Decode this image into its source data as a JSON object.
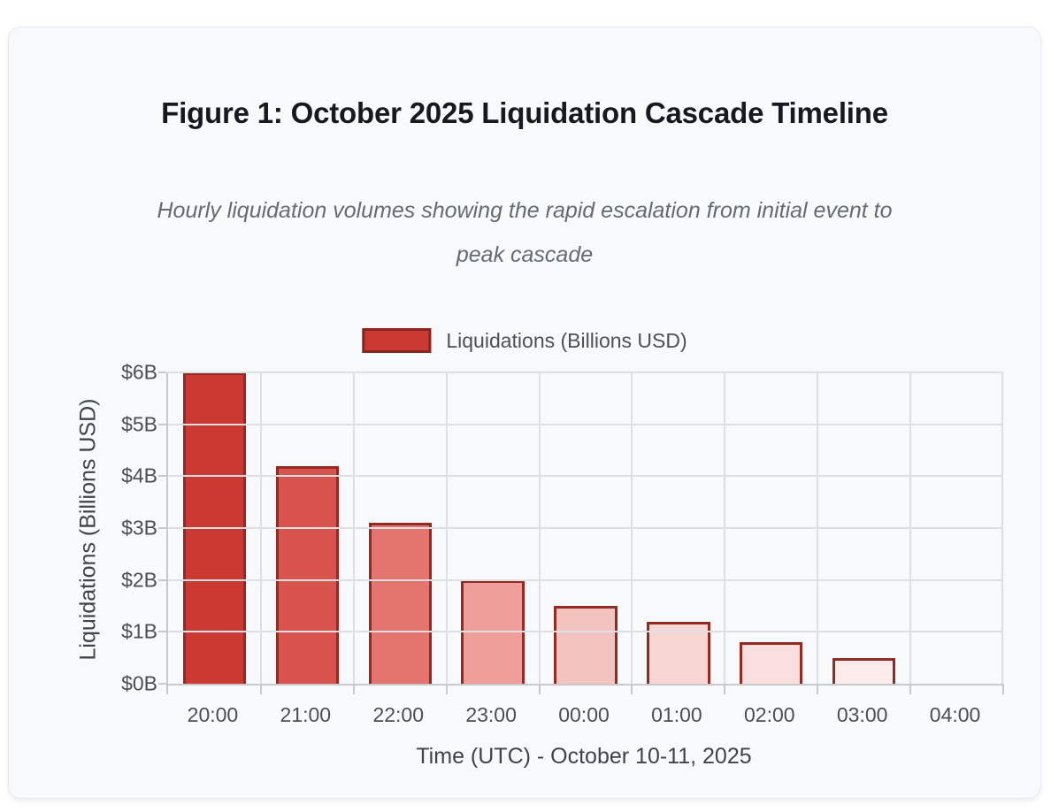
{
  "figure": {
    "title": "Figure 1: October 2025 Liquidation Cascade Timeline",
    "subtitle": "Hourly liquidation volumes showing the rapid escalation from initial event to\npeak cascade"
  },
  "legend": {
    "label": "Liquidations (Billions USD)",
    "swatch_fill": "#ca3a32",
    "swatch_border": "#8a241e"
  },
  "chart_data": {
    "type": "bar",
    "title": "Figure 1: October 2025 Liquidation Cascade Timeline",
    "categories": [
      "20:00",
      "21:00",
      "22:00",
      "23:00",
      "00:00",
      "01:00",
      "02:00",
      "03:00",
      "04:00"
    ],
    "values": [
      6.0,
      4.2,
      3.1,
      2.0,
      1.5,
      1.2,
      0.8,
      0.5,
      0
    ],
    "series_name": "Liquidations (Billions USD)",
    "xlabel": "Time (UTC) - October 10-11, 2025",
    "ylabel": "Liquidations (Billions USD)",
    "y_tick_labels": [
      "$6B",
      "$5B",
      "$4B",
      "$3B",
      "$2B",
      "$1B",
      "$0B"
    ],
    "ylim": [
      0,
      6
    ],
    "grid": true,
    "legend_position": "top-center",
    "bar_fill_colors": [
      "#ca3a32",
      "#d7534b",
      "#e4746e",
      "#ef9e9a",
      "#f3c3c0",
      "#f7d6d4",
      "#f9e0de",
      "#fbeceb",
      "#fbeceb"
    ],
    "bar_border_color": "#932a24"
  }
}
